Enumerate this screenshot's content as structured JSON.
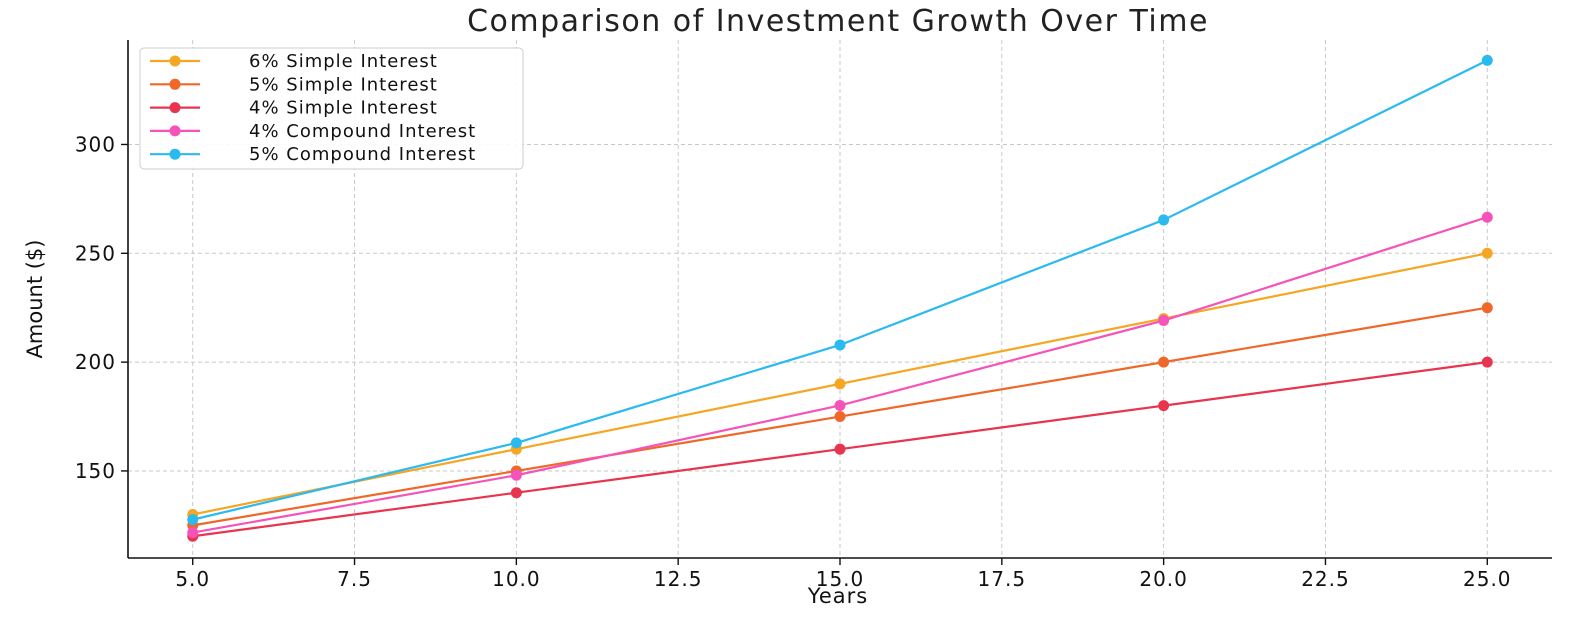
{
  "chart_data": {
    "type": "line",
    "title": "Comparison of Investment Growth Over Time",
    "xlabel": "Years",
    "ylabel": "Amount ($)",
    "x": [
      5,
      10,
      15,
      20,
      25
    ],
    "xlim": [
      4.0,
      26.0
    ],
    "ylim": [
      110,
      348
    ],
    "xticks": [
      "5.0",
      "7.5",
      "10.0",
      "12.5",
      "15.0",
      "17.5",
      "20.0",
      "22.5",
      "25.0"
    ],
    "yticks": [
      "150",
      "200",
      "250",
      "300"
    ],
    "grid": true,
    "legend_position": "top-left",
    "series": [
      {
        "name": "6% Simple Interest",
        "color": "#f5a623",
        "values": [
          130,
          160,
          190,
          220,
          250
        ]
      },
      {
        "name": "5% Simple Interest",
        "color": "#f0672a",
        "values": [
          125,
          150,
          175,
          200,
          225
        ]
      },
      {
        "name": "4% Simple Interest",
        "color": "#e8344e",
        "values": [
          120,
          140,
          160,
          180,
          200
        ]
      },
      {
        "name": "4% Compound Interest",
        "color": "#f553b9",
        "values": [
          121.67,
          148.02,
          180.09,
          219.11,
          266.58
        ]
      },
      {
        "name": "5% Compound Interest",
        "color": "#2bbaf0",
        "values": [
          127.63,
          162.89,
          207.89,
          265.33,
          338.64
        ]
      }
    ]
  }
}
